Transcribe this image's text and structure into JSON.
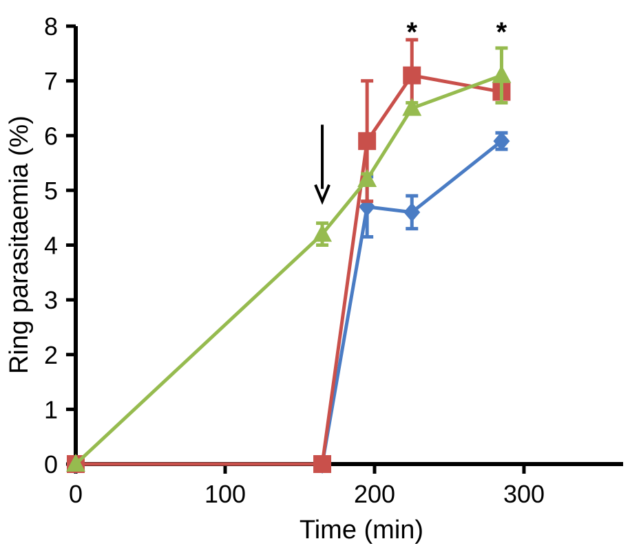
{
  "chart_data": {
    "type": "line",
    "title": "",
    "xlabel": "Time (min)",
    "ylabel": "Ring parasitaemia (%)",
    "xlim": [
      0,
      370
    ],
    "ylim": [
      0,
      8
    ],
    "xticks": [
      0,
      100,
      200,
      300
    ],
    "yticks": [
      0,
      1,
      2,
      3,
      4,
      5,
      6,
      7,
      8
    ],
    "grid": false,
    "legend": "none",
    "series": [
      {
        "color": "#4a7cc4",
        "marker": "diamond",
        "x": [
          0,
          165,
          195,
          225,
          285
        ],
        "y": [
          0,
          0,
          4.7,
          4.6,
          5.9
        ],
        "err": [
          0,
          0,
          0.55,
          0.3,
          0.15
        ]
      },
      {
        "color": "#c9504b",
        "marker": "square",
        "x": [
          0,
          165,
          195,
          225,
          285
        ],
        "y": [
          0,
          0,
          5.9,
          7.1,
          6.8
        ],
        "err": [
          0,
          0,
          1.1,
          0.65,
          0.1
        ]
      },
      {
        "color": "#96bb4f",
        "marker": "triangle",
        "x": [
          0,
          165,
          195,
          225,
          285
        ],
        "y": [
          0,
          4.2,
          5.2,
          6.5,
          7.1
        ],
        "err": [
          0,
          0.2,
          0.1,
          0.1,
          0.5
        ]
      }
    ],
    "annotations": [
      {
        "type": "arrow",
        "x": 165,
        "y_from": 6.2,
        "y_to": 4.8
      },
      {
        "type": "text",
        "text": "*",
        "x": 225,
        "y": 7.9
      },
      {
        "type": "text",
        "text": "*",
        "x": 285,
        "y": 7.9
      }
    ]
  }
}
